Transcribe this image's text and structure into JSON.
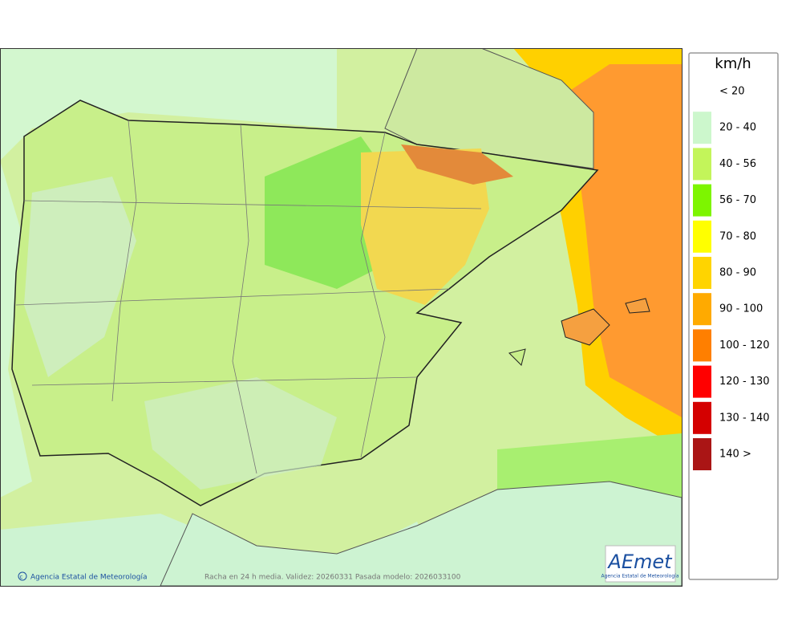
{
  "legend": {
    "unit": "km/h",
    "items": [
      {
        "label": "< 20",
        "color": "#ffffff"
      },
      {
        "label": "20 - 40",
        "color": "#ccf7cc"
      },
      {
        "label": "40 - 56",
        "color": "#c3f55a"
      },
      {
        "label": "56 - 70",
        "color": "#7df500"
      },
      {
        "label": "70 - 80",
        "color": "#ffff00"
      },
      {
        "label": "80 - 90",
        "color": "#ffd400"
      },
      {
        "label": "90 - 100",
        "color": "#ffaa00"
      },
      {
        "label": "100 - 120",
        "color": "#ff7f00"
      },
      {
        "label": "120 - 130",
        "color": "#ff0000"
      },
      {
        "label": "130 - 140",
        "color": "#d40000"
      },
      {
        "label": "140 >",
        "color": "#aa1515"
      }
    ]
  },
  "footer": {
    "credit": "Agencia Estatal de Meteorología",
    "caption": "Racha en 24 h media. Validez: 20260331 Pasada modelo: 2026033100"
  },
  "logo": {
    "name": "AEmet",
    "subtitle": "Agencia Estatal de Meteorología"
  }
}
